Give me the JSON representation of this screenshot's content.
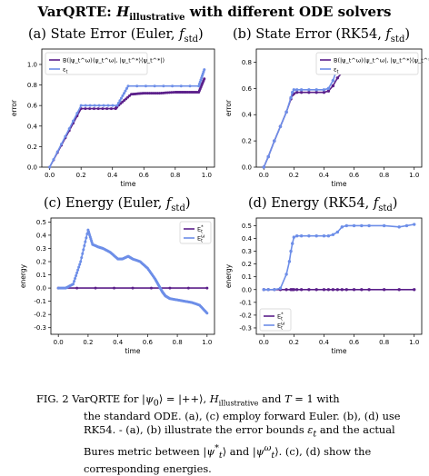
{
  "figure": {
    "title": "VarQRTE: H_illustrative with different ODE solvers",
    "caption": "FIG. 2 VarQRTE for |ψ0⟩ = |++⟩, H_illustrative and T = 1 with the standard ODE. (a), (c) employ forward Euler. (b), (d) use RK54. - (a), (b) illustrate the error bounds ε_t and the actual Bures metric between |ψ*_t⟩ and |ψ^ω_t⟩. (c), (d) show the corresponding energies."
  },
  "colors": {
    "purple": "#5b1f8a",
    "blue": "#6d8ee8"
  },
  "chart_data": [
    {
      "id": "a",
      "type": "line",
      "title": "(a) State Error (Euler, f_std)",
      "xlabel": "time",
      "ylabel": "error",
      "xlim": [
        -0.05,
        1.05
      ],
      "ylim": [
        0.0,
        1.15
      ],
      "xticks": [
        0.0,
        0.2,
        0.4,
        0.6,
        0.8,
        1.0
      ],
      "yticks": [
        0.0,
        0.2,
        0.4,
        0.6,
        0.8,
        1.0
      ],
      "legend_position": "top-left",
      "markers": "dense",
      "series": [
        {
          "name": "B(|ψ_t^ω⟩⟨ψ_t^ω|, |ψ_t^*⟩⟨ψ_t^*|)",
          "color": "purple",
          "x": [
            0.0,
            0.2,
            0.42,
            0.43,
            0.52,
            0.6,
            0.7,
            0.8,
            0.87,
            0.95,
            0.985
          ],
          "y": [
            0.0,
            0.57,
            0.57,
            0.59,
            0.71,
            0.72,
            0.72,
            0.73,
            0.73,
            0.73,
            0.86
          ]
        },
        {
          "name": "ε_t",
          "color": "blue",
          "x": [
            0.0,
            0.2,
            0.43,
            0.5,
            0.95,
            0.985
          ],
          "y": [
            0.0,
            0.6,
            0.6,
            0.79,
            0.79,
            0.95
          ]
        }
      ]
    },
    {
      "id": "b",
      "type": "line",
      "title": "(b) State Error (RK54, f_std)",
      "xlabel": "time",
      "ylabel": "error",
      "xlim": [
        -0.05,
        1.05
      ],
      "ylim": [
        0.0,
        0.9
      ],
      "xticks": [
        0.0,
        0.2,
        0.4,
        0.6,
        0.8,
        1.0
      ],
      "yticks": [
        0.0,
        0.2,
        0.4,
        0.6,
        0.8
      ],
      "legend_position": "top-right",
      "markers": "sparse",
      "series": [
        {
          "name": "B(|ψ_t^ω⟩⟨ψ_t^ω|, |ψ_t^*⟩⟨ψ_t^*|)",
          "color": "purple",
          "x": [
            0.0,
            0.03,
            0.07,
            0.11,
            0.15,
            0.18,
            0.19,
            0.2,
            0.22,
            0.25,
            0.3,
            0.35,
            0.4,
            0.43,
            0.46,
            0.49,
            0.52,
            0.55,
            0.6,
            0.65,
            0.7,
            0.8,
            0.9,
            1.0
          ],
          "y": [
            0.0,
            0.08,
            0.2,
            0.31,
            0.42,
            0.52,
            0.55,
            0.56,
            0.57,
            0.57,
            0.57,
            0.57,
            0.57,
            0.58,
            0.62,
            0.68,
            0.72,
            0.73,
            0.73,
            0.73,
            0.73,
            0.73,
            0.73,
            0.73
          ]
        },
        {
          "name": "ε_t",
          "color": "blue",
          "x": [
            0.0,
            0.03,
            0.07,
            0.11,
            0.15,
            0.18,
            0.19,
            0.2,
            0.22,
            0.25,
            0.3,
            0.35,
            0.4,
            0.43,
            0.46,
            0.49,
            0.52,
            0.55,
            0.6,
            0.65,
            0.7,
            0.8,
            0.9,
            1.0
          ],
          "y": [
            0.0,
            0.08,
            0.2,
            0.31,
            0.42,
            0.53,
            0.57,
            0.59,
            0.59,
            0.59,
            0.59,
            0.59,
            0.59,
            0.6,
            0.66,
            0.76,
            0.8,
            0.81,
            0.81,
            0.81,
            0.81,
            0.81,
            0.81,
            0.81
          ]
        }
      ]
    },
    {
      "id": "c",
      "type": "line",
      "title": "(c) Energy (Euler, f_std)",
      "xlabel": "time",
      "ylabel": "energy",
      "xlim": [
        -0.05,
        1.05
      ],
      "ylim": [
        -0.35,
        0.53
      ],
      "xticks": [
        0.0,
        0.2,
        0.4,
        0.6,
        0.8,
        1.0
      ],
      "yticks": [
        -0.3,
        -0.2,
        -0.1,
        0.0,
        0.1,
        0.2,
        0.3,
        0.4,
        0.5
      ],
      "legend_position": "top-right",
      "markers": "dense",
      "series": [
        {
          "name": "E_t^*",
          "color": "purple",
          "x": [
            0.0,
            1.0
          ],
          "y": [
            0.0,
            0.0
          ]
        },
        {
          "name": "E_t^ω",
          "color": "blue",
          "x": [
            0.0,
            0.05,
            0.1,
            0.15,
            0.2,
            0.23,
            0.27,
            0.3,
            0.35,
            0.4,
            0.43,
            0.47,
            0.5,
            0.55,
            0.6,
            0.65,
            0.68,
            0.7,
            0.72,
            0.75,
            0.8,
            0.85,
            0.9,
            0.95,
            1.0
          ],
          "y": [
            0.0,
            0.0,
            0.03,
            0.2,
            0.44,
            0.33,
            0.31,
            0.3,
            0.27,
            0.22,
            0.22,
            0.24,
            0.22,
            0.2,
            0.15,
            0.07,
            0.01,
            -0.03,
            -0.06,
            -0.08,
            -0.09,
            -0.1,
            -0.11,
            -0.13,
            -0.19
          ]
        }
      ]
    },
    {
      "id": "d",
      "type": "line",
      "title": "(d) Energy (RK54, f_std)",
      "xlabel": "time",
      "ylabel": "energy",
      "xlim": [
        -0.05,
        1.05
      ],
      "ylim": [
        -0.35,
        0.56
      ],
      "xticks": [
        0.0,
        0.2,
        0.4,
        0.6,
        0.8,
        1.0
      ],
      "yticks": [
        -0.3,
        -0.2,
        -0.1,
        0.0,
        0.1,
        0.2,
        0.3,
        0.4,
        0.5
      ],
      "legend_position": "bottom-left",
      "markers": "sparse",
      "series": [
        {
          "name": "E_t^*",
          "color": "purple",
          "x": [
            0.0,
            0.03,
            0.07,
            0.11,
            0.15,
            0.18,
            0.19,
            0.2,
            0.22,
            0.25,
            0.3,
            0.35,
            0.4,
            0.43,
            0.46,
            0.49,
            0.52,
            0.55,
            0.6,
            0.65,
            0.7,
            0.8,
            0.9,
            1.0
          ],
          "y": [
            0.0,
            0.0,
            0.0,
            0.0,
            0.0,
            0.0,
            0.0,
            0.0,
            0.0,
            0.0,
            0.0,
            0.0,
            0.0,
            0.0,
            0.0,
            0.0,
            0.0,
            0.0,
            0.0,
            0.0,
            0.0,
            0.0,
            0.0,
            0.0
          ]
        },
        {
          "name": "E_t^ω",
          "color": "blue",
          "x": [
            0.0,
            0.03,
            0.07,
            0.11,
            0.15,
            0.17,
            0.18,
            0.19,
            0.2,
            0.22,
            0.25,
            0.3,
            0.35,
            0.4,
            0.43,
            0.46,
            0.49,
            0.52,
            0.55,
            0.6,
            0.65,
            0.7,
            0.8,
            0.9,
            0.95,
            1.0
          ],
          "y": [
            0.0,
            0.0,
            0.0,
            0.01,
            0.12,
            0.22,
            0.3,
            0.36,
            0.41,
            0.42,
            0.42,
            0.42,
            0.42,
            0.42,
            0.42,
            0.43,
            0.45,
            0.49,
            0.5,
            0.5,
            0.5,
            0.5,
            0.5,
            0.49,
            0.5,
            0.51
          ]
        }
      ]
    }
  ]
}
